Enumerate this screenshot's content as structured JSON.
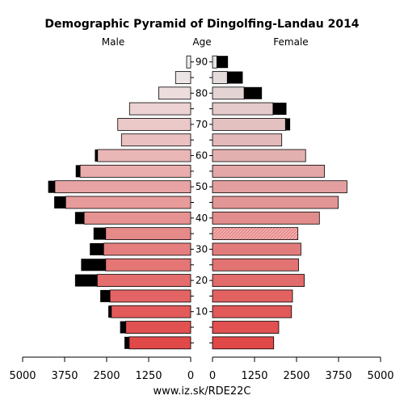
{
  "chart_data": {
    "type": "bar",
    "title": "Demographic Pyramid of Dingolfing-Landau 2014",
    "male_label": "Male",
    "female_label": "Female",
    "age_label": "Age",
    "source": "www.iz.sk/RDE22C",
    "x_ticks_left": [
      "5000",
      "3750",
      "2500",
      "1250",
      "0"
    ],
    "x_ticks_right": [
      "0",
      "1250",
      "2500",
      "3750",
      "5000"
    ],
    "xlim": [
      0,
      5000
    ],
    "age_ticks": [
      10,
      20,
      30,
      40,
      50,
      60,
      70,
      80,
      90
    ],
    "age_groups": [
      "0-4",
      "5-9",
      "10-14",
      "15-19",
      "20-24",
      "25-29",
      "30-34",
      "35-39",
      "40-44",
      "45-49",
      "50-54",
      "55-59",
      "60-64",
      "65-69",
      "70-74",
      "75-79",
      "80-84",
      "85-89",
      "90-94"
    ],
    "series": [
      {
        "name": "Male",
        "values": [
          1830,
          1930,
          2360,
          2400,
          2780,
          2530,
          2590,
          2530,
          3170,
          3720,
          4040,
          3290,
          2770,
          2060,
          2170,
          1820,
          950,
          450,
          120
        ]
      },
      {
        "name": "Male excess",
        "values": [
          140,
          170,
          90,
          290,
          660,
          730,
          410,
          360,
          270,
          340,
          200,
          130,
          80,
          0,
          0,
          0,
          0,
          0,
          0
        ]
      },
      {
        "name": "Female",
        "values": [
          1820,
          1970,
          2350,
          2380,
          2730,
          2560,
          2630,
          2540,
          3180,
          3740,
          4000,
          3330,
          2770,
          2060,
          2170,
          1800,
          940,
          440,
          130
        ]
      },
      {
        "name": "Female excess",
        "values": [
          0,
          0,
          0,
          0,
          0,
          0,
          0,
          0,
          0,
          0,
          0,
          0,
          0,
          0,
          140,
          400,
          530,
          460,
          330
        ]
      }
    ],
    "colors": {
      "excess": "#000000",
      "male_young": "#e14848",
      "male_old": "#eeeeee",
      "female_young": "#e14848",
      "female_old": "#e4e4e4",
      "female_hatched_group": "35-39"
    }
  }
}
